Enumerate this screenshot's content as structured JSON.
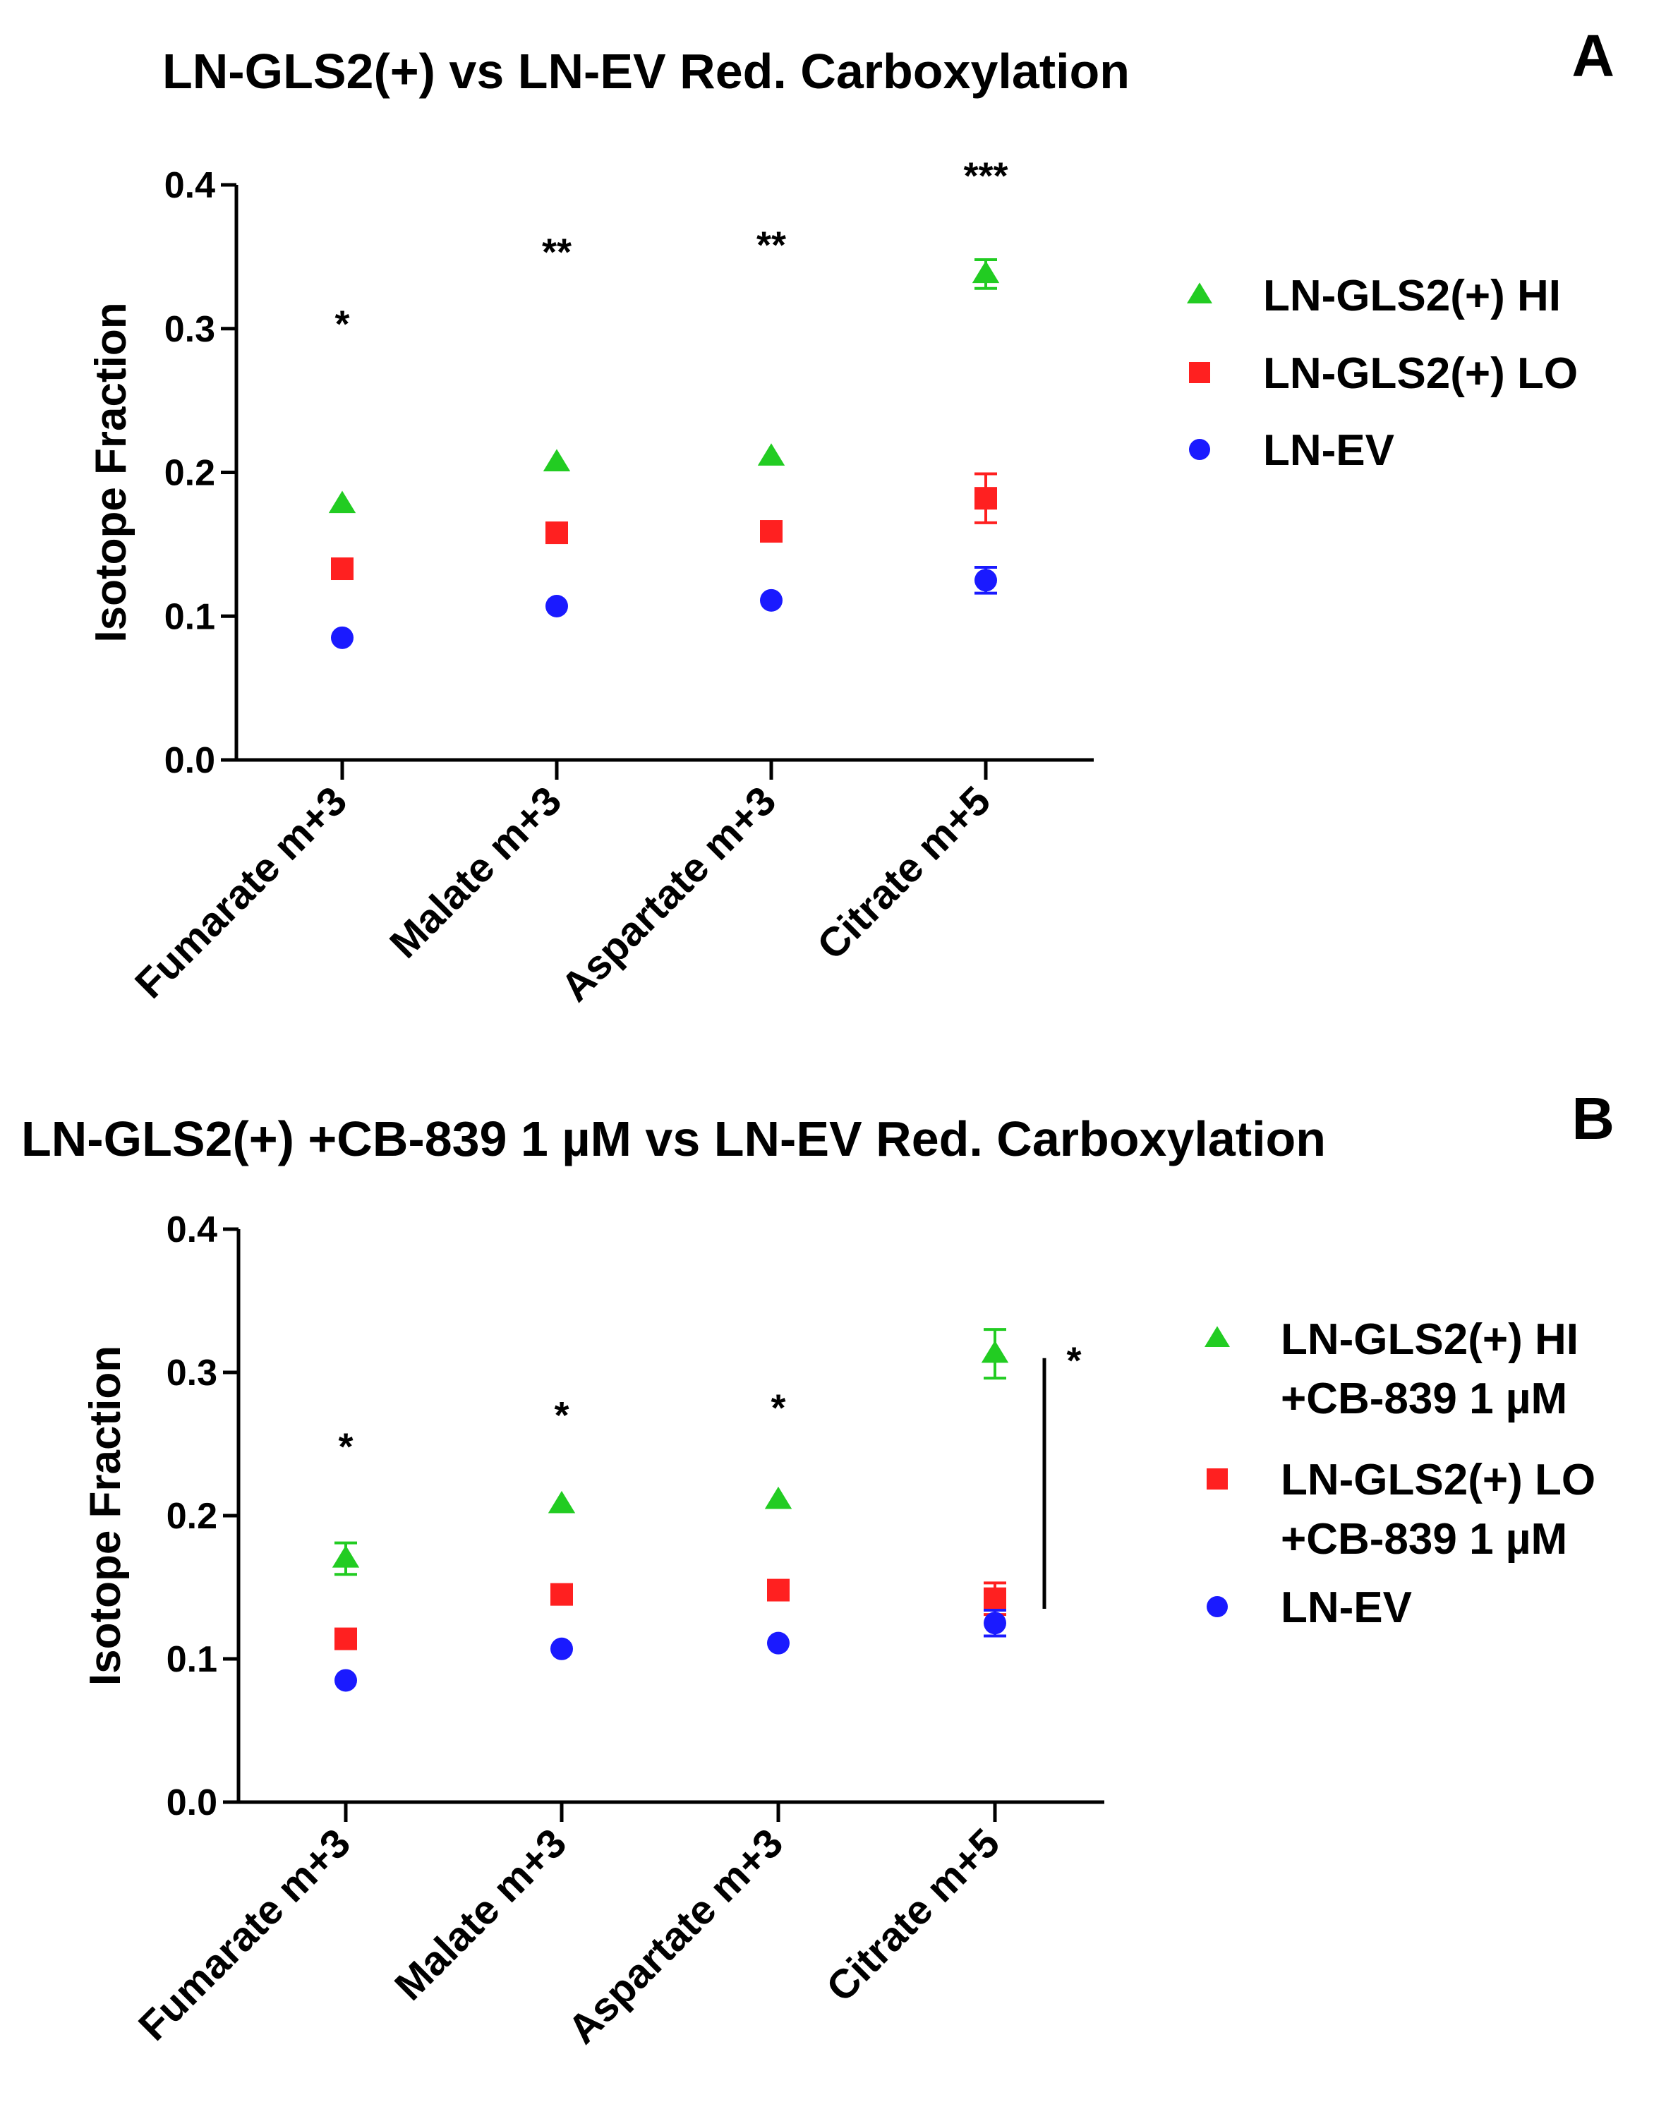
{
  "chart_data": [
    {
      "type": "scatter",
      "panel": "A",
      "title": "LN-GLS2(+) vs LN-EV  Red.  Carboxylation",
      "xlabel": "",
      "ylabel": "Isotope Fraction",
      "ylim": [
        0,
        0.4
      ],
      "yticks": [
        0.0,
        0.1,
        0.2,
        0.3,
        0.4
      ],
      "ytick_labels": [
        "0.0",
        "0.1",
        "0.2",
        "0.3",
        "0.4"
      ],
      "categories": [
        "Fumarate m+3",
        "Malate m+3",
        "Aspartate m+3",
        "Citrate m+5"
      ],
      "series": [
        {
          "name": "LN-GLS2(+) HI",
          "marker": "triangle",
          "color": "#22cc22",
          "values": [
            0.178,
            0.207,
            0.211,
            0.338
          ],
          "errors": [
            0.0,
            0.0,
            0.0,
            0.01
          ]
        },
        {
          "name": "LN-GLS2(+) LO",
          "marker": "square",
          "color": "#ff2020",
          "values": [
            0.133,
            0.158,
            0.159,
            0.182
          ],
          "errors": [
            0.0,
            0.0,
            0.0,
            0.017
          ]
        },
        {
          "name": "LN-EV",
          "marker": "circle",
          "color": "#1a1aff",
          "values": [
            0.085,
            0.107,
            0.111,
            0.125
          ],
          "errors": [
            0.0,
            0.0,
            0.0,
            0.009
          ]
        }
      ],
      "annotations": [
        {
          "category": "Fumarate m+3",
          "text": "*",
          "y": 0.305
        },
        {
          "category": "Malate m+3",
          "text": "**",
          "y": 0.355
        },
        {
          "category": "Aspartate m+3",
          "text": "**",
          "y": 0.36
        },
        {
          "category": "Citrate m+5",
          "text": "***",
          "y": 0.408
        }
      ],
      "bracket": null,
      "legend_position": "right",
      "grid": false
    },
    {
      "type": "scatter",
      "panel": "B",
      "title": "LN-GLS2(+) +CB-839 1 µM vs LN-EV Red. Carboxylation",
      "xlabel": "",
      "ylabel": "Isotope Fraction",
      "ylim": [
        0,
        0.4
      ],
      "yticks": [
        0.0,
        0.1,
        0.2,
        0.3,
        0.4
      ],
      "ytick_labels": [
        "0.0",
        "0.1",
        "0.2",
        "0.3",
        "0.4"
      ],
      "categories": [
        "Fumarate m+3",
        "Malate m+3",
        "Aspartate m+3",
        "Citrate m+5"
      ],
      "series": [
        {
          "name": "LN-GLS2(+) HI",
          "name_line2": "+CB-839 1 µM",
          "marker": "triangle",
          "color": "#22cc22",
          "values": [
            0.17,
            0.208,
            0.211,
            0.313
          ],
          "errors": [
            0.011,
            0.0,
            0.0,
            0.017
          ]
        },
        {
          "name": "LN-GLS2(+) LO",
          "name_line2": "+CB-839 1 µM",
          "marker": "square",
          "color": "#ff2020",
          "values": [
            0.114,
            0.145,
            0.148,
            0.142
          ],
          "errors": [
            0.0,
            0.0,
            0.0,
            0.011
          ]
        },
        {
          "name": "LN-EV",
          "name_line2": "",
          "marker": "circle",
          "color": "#1a1aff",
          "values": [
            0.085,
            0.107,
            0.111,
            0.125
          ],
          "errors": [
            0.0,
            0.0,
            0.0,
            0.009
          ]
        }
      ],
      "annotations": [
        {
          "category": "Fumarate m+3",
          "text": "*",
          "y": 0.25
        },
        {
          "category": "Malate m+3",
          "text": "*",
          "y": 0.272
        },
        {
          "category": "Aspartate m+3",
          "text": "*",
          "y": 0.277
        }
      ],
      "bracket": {
        "category": "Citrate m+5",
        "y_from": 0.135,
        "y_to": 0.31,
        "text": "*"
      },
      "legend_position": "right",
      "grid": false
    }
  ]
}
